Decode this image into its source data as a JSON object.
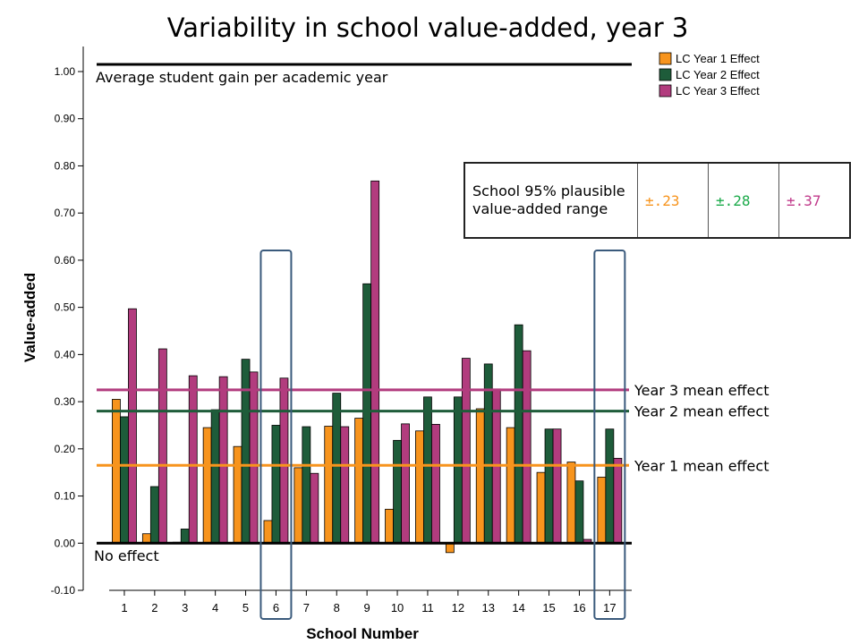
{
  "chart_data": {
    "type": "bar",
    "title": "Variability in school value-added, year 3",
    "xlabel": "School Number",
    "ylabel": "Value-added",
    "ylim": [
      -0.1,
      1.0
    ],
    "yticks": [
      "1.00",
      "0.90",
      "0.80",
      "0.70",
      "0.60",
      "0.50",
      "0.40",
      "0.30",
      "0.20",
      "0.10",
      "0.00",
      "-0.10"
    ],
    "categories": [
      "1",
      "2",
      "3",
      "4",
      "5",
      "6",
      "7",
      "8",
      "9",
      "10",
      "11",
      "12",
      "13",
      "14",
      "15",
      "16",
      "17"
    ],
    "series": [
      {
        "name": "LC Year 1 Effect",
        "color": "#F7941D",
        "values": [
          0.305,
          0.02,
          0.002,
          0.245,
          0.205,
          0.048,
          0.16,
          0.248,
          0.265,
          0.072,
          0.238,
          -0.02,
          0.285,
          0.245,
          0.15,
          0.172,
          0.14
        ]
      },
      {
        "name": "LC Year 2 Effect",
        "color": "#1E5C3A",
        "values": [
          0.268,
          0.12,
          0.03,
          0.283,
          0.39,
          0.25,
          0.247,
          0.318,
          0.55,
          0.218,
          0.31,
          0.31,
          0.38,
          0.463,
          0.242,
          0.132,
          0.242
        ]
      },
      {
        "name": "LC Year 3 Effect",
        "color": "#B23C7E",
        "values": [
          0.497,
          0.412,
          0.355,
          0.353,
          0.363,
          0.35,
          0.148,
          0.247,
          0.768,
          0.253,
          0.252,
          0.392,
          0.327,
          0.408,
          0.242,
          0.008,
          0.18
        ]
      }
    ],
    "grid": false,
    "legend_position": "top-right",
    "reference_lines": [
      {
        "label": "Year 3 mean effect",
        "value": 0.325,
        "color": "#B23C7E"
      },
      {
        "label": "Year 2 mean effect",
        "value": 0.28,
        "color": "#1E5C3A"
      },
      {
        "label": "Year 1 mean effect",
        "value": 0.165,
        "color": "#F7941D"
      }
    ],
    "top_line_label": "Average student gain per academic year",
    "zero_line_label": "No effect",
    "highlighted_categories": [
      "6",
      "17"
    ]
  },
  "range_table": {
    "label": "School 95% plausible value-added range",
    "values": [
      {
        "text": "±.23",
        "color": "#F7941D"
      },
      {
        "text": "±.28",
        "color": "#1BAA4A"
      },
      {
        "text": "±.37",
        "color": "#C0398A"
      }
    ]
  }
}
